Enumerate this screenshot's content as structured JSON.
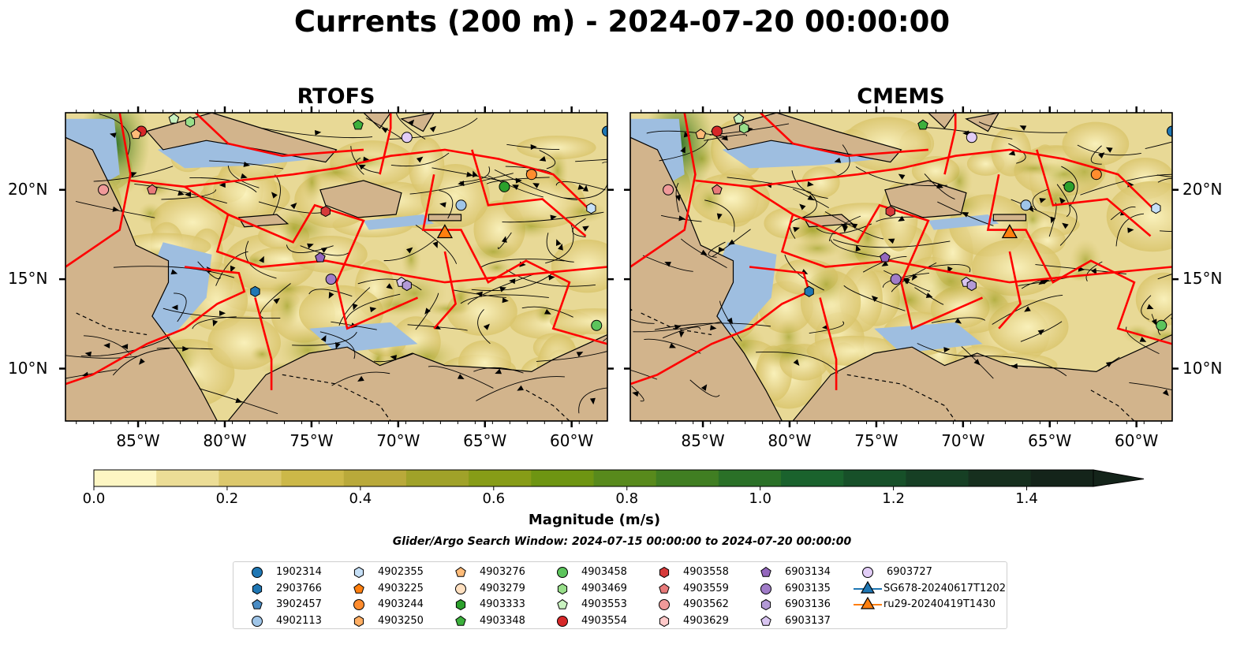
{
  "figure": {
    "title": "Currents (200 m) - 2024-07-20 00:00:00",
    "search_window": "Glider/Argo Search Window: 2024-07-15 00:00:00 to 2024-07-20 00:00:00"
  },
  "panels": [
    {
      "title": "RTOFS"
    },
    {
      "title": "CMEMS"
    }
  ],
  "axes": {
    "lon_ticks": [
      "85°W",
      "80°W",
      "75°W",
      "70°W",
      "65°W",
      "60°W"
    ],
    "lat_ticks": [
      "20°N",
      "15°N",
      "10°N"
    ]
  },
  "colorbar": {
    "label": "Magnitude (m/s)",
    "ticks": [
      "0.0",
      "0.2",
      "0.4",
      "0.6",
      "0.8",
      "1.0",
      "1.2",
      "1.4"
    ],
    "colors": [
      "#fdf6c3",
      "#ecdd96",
      "#dcc86c",
      "#ccb848",
      "#b9a93a",
      "#a0a229",
      "#879c17",
      "#6e9512",
      "#588a1c",
      "#407e22",
      "#2a7027",
      "#1a622d",
      "#175029",
      "#163f24",
      "#162f1e",
      "#14241a"
    ]
  },
  "colors": {
    "land": "#d2b48c",
    "shallow_water": "#9ebee0",
    "eez_border": "#ff0000"
  },
  "legend": {
    "items": [
      {
        "label": "1902314",
        "marker": "circle",
        "color": "#1f77b4"
      },
      {
        "label": "2903766",
        "marker": "hexagon",
        "color": "#1f77b4"
      },
      {
        "label": "3902457",
        "marker": "pentagon",
        "color": "#4a8cc4"
      },
      {
        "label": "4902113",
        "marker": "circle",
        "color": "#9fc5e8"
      },
      {
        "label": "4902355",
        "marker": "hexagon",
        "color": "#c6e0f7"
      },
      {
        "label": "4903225",
        "marker": "pentagon",
        "color": "#ff7f0e"
      },
      {
        "label": "4903244",
        "marker": "circle",
        "color": "#ff8c2e"
      },
      {
        "label": "4903250",
        "marker": "hexagon",
        "color": "#ffae63"
      },
      {
        "label": "4903276",
        "marker": "pentagon",
        "color": "#ffbb78"
      },
      {
        "label": "4903279",
        "marker": "circle",
        "color": "#ffe0c0"
      },
      {
        "label": "4903333",
        "marker": "hexagon",
        "color": "#2ca02c"
      },
      {
        "label": "4903348",
        "marker": "pentagon",
        "color": "#3cb03c"
      },
      {
        "label": "4903458",
        "marker": "circle",
        "color": "#5cc45c"
      },
      {
        "label": "4903469",
        "marker": "hexagon",
        "color": "#98df8a"
      },
      {
        "label": "4903553",
        "marker": "pentagon",
        "color": "#c9f2c0"
      },
      {
        "label": "4903554",
        "marker": "circle",
        "color": "#d62728"
      },
      {
        "label": "4903558",
        "marker": "hexagon",
        "color": "#d63a3a"
      },
      {
        "label": "4903559",
        "marker": "pentagon",
        "color": "#e87a7a"
      },
      {
        "label": "4903562",
        "marker": "circle",
        "color": "#f09a9a"
      },
      {
        "label": "4903629",
        "marker": "hexagon",
        "color": "#ffc9c9"
      },
      {
        "label": "6903134",
        "marker": "pentagon",
        "color": "#9467bd"
      },
      {
        "label": "6903135",
        "marker": "circle",
        "color": "#a07cc8"
      },
      {
        "label": "6903136",
        "marker": "hexagon",
        "color": "#b39ad6"
      },
      {
        "label": "6903137",
        "marker": "pentagon",
        "color": "#d8c4f0"
      },
      {
        "label": "6903727",
        "marker": "circle",
        "color": "#e2cdf7"
      },
      {
        "label": "SG678-20240617T1202",
        "marker": "triangle-line",
        "color": "#1f77b4"
      },
      {
        "label": "ru29-20240419T1430",
        "marker": "triangle-line",
        "color": "#ff7f0e"
      }
    ]
  }
}
